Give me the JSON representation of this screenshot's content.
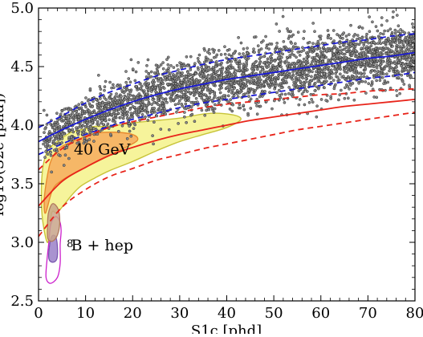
{
  "chart_data": {
    "type": "scatter",
    "xlabel": "S1c [phd]",
    "ylabel": "log10(S2c [phd])",
    "xlim": [
      0,
      80
    ],
    "ylim": [
      2.5,
      5.0
    ],
    "xticks": [
      0,
      10,
      20,
      30,
      40,
      50,
      60,
      70,
      80
    ],
    "xtick_labels": [
      "0",
      "10",
      "20",
      "30",
      "40",
      "50",
      "60",
      "70",
      "80"
    ],
    "yticks": [
      2.5,
      3.0,
      3.5,
      4.0,
      4.5,
      5.0
    ],
    "ytick_labels": [
      "2.5",
      "3.0",
      "3.5",
      "4.0",
      "4.5",
      "5.0"
    ],
    "annotations": [
      {
        "text": "40 GeV",
        "x": 7.5,
        "y": 3.75
      },
      {
        "text": "8",
        "sup": true,
        "x": 6.0,
        "y": 2.96
      },
      {
        "text": "B + hep",
        "x": 6.9,
        "y": 2.93
      }
    ],
    "background_band": {
      "x": [
        0,
        5,
        10,
        15,
        20,
        25,
        30,
        35,
        40,
        45,
        50,
        55,
        60,
        65,
        70,
        75,
        80
      ],
      "mean": [
        3.86,
        3.96,
        4.05,
        4.13,
        4.2,
        4.26,
        4.31,
        4.35,
        4.39,
        4.42,
        4.45,
        4.48,
        4.51,
        4.54,
        4.57,
        4.59,
        4.62
      ],
      "upper": [
        3.98,
        4.08,
        4.19,
        4.28,
        4.35,
        4.42,
        4.47,
        4.52,
        4.56,
        4.59,
        4.62,
        4.65,
        4.68,
        4.71,
        4.73,
        4.76,
        4.78
      ],
      "lower": [
        3.75,
        3.84,
        3.92,
        3.99,
        4.05,
        4.1,
        4.15,
        4.19,
        4.22,
        4.25,
        4.28,
        4.31,
        4.34,
        4.37,
        4.4,
        4.42,
        4.45
      ]
    },
    "nr_band": {
      "x": [
        0,
        5,
        10,
        15,
        20,
        25,
        30,
        35,
        40,
        45,
        50,
        55,
        60,
        65,
        70,
        75,
        80
      ],
      "mean": [
        3.31,
        3.52,
        3.64,
        3.74,
        3.81,
        3.87,
        3.92,
        3.96,
        4.0,
        4.04,
        4.07,
        4.1,
        4.13,
        4.16,
        4.18,
        4.2,
        4.22
      ],
      "upper": [
        3.62,
        3.8,
        3.9,
        3.98,
        4.03,
        4.07,
        4.11,
        4.15,
        4.18,
        4.2,
        4.22,
        4.24,
        4.26,
        4.27,
        4.29,
        4.3,
        4.31
      ],
      "lower": [
        3.05,
        3.3,
        3.45,
        3.56,
        3.63,
        3.7,
        3.75,
        3.8,
        3.84,
        3.88,
        3.92,
        3.96,
        3.99,
        4.02,
        4.05,
        4.08,
        4.11
      ]
    },
    "wimp_40gev_contours": [
      {
        "level": "outer",
        "fill": "#f4f28a",
        "stroke": "#c8c43a",
        "points": [
          [
            2.0,
            3.0
          ],
          [
            2.8,
            3.25
          ],
          [
            3.8,
            3.25
          ],
          [
            5,
            3.3
          ],
          [
            7,
            3.4
          ],
          [
            9,
            3.48
          ],
          [
            12,
            3.55
          ],
          [
            15,
            3.61
          ],
          [
            20,
            3.69
          ],
          [
            25,
            3.78
          ],
          [
            30,
            3.86
          ],
          [
            35,
            3.92
          ],
          [
            40,
            3.98
          ],
          [
            43,
            4.05
          ],
          [
            41,
            4.09
          ],
          [
            36,
            4.1
          ],
          [
            30,
            4.06
          ],
          [
            25,
            4.04
          ],
          [
            20,
            4.02
          ],
          [
            15,
            3.99
          ],
          [
            12,
            3.99
          ],
          [
            10,
            3.97
          ],
          [
            7,
            3.94
          ],
          [
            5,
            3.89
          ],
          [
            3,
            3.83
          ],
          [
            1.6,
            3.75
          ],
          [
            0.8,
            3.6
          ],
          [
            0.6,
            3.35
          ],
          [
            1.0,
            3.15
          ]
        ]
      },
      {
        "level": "inner",
        "fill": "#f6b062",
        "stroke": "#e88a2e",
        "points": [
          [
            1.5,
            3.25
          ],
          [
            3,
            3.45
          ],
          [
            5,
            3.53
          ],
          [
            8,
            3.6
          ],
          [
            11,
            3.66
          ],
          [
            15,
            3.74
          ],
          [
            18,
            3.8
          ],
          [
            21,
            3.87
          ],
          [
            20,
            3.92
          ],
          [
            16,
            3.94
          ],
          [
            12,
            3.93
          ],
          [
            9,
            3.89
          ],
          [
            6,
            3.84
          ],
          [
            4,
            3.79
          ],
          [
            2.5,
            3.68
          ],
          [
            1.6,
            3.5
          ],
          [
            1.2,
            3.35
          ]
        ]
      }
    ],
    "b8_hep_contours": [
      {
        "level": "outer",
        "stroke": "#cc1fcc",
        "points": [
          [
            1.6,
            2.7
          ],
          [
            2.5,
            2.65
          ],
          [
            4.0,
            2.7
          ],
          [
            4.6,
            2.82
          ],
          [
            4.6,
            2.98
          ],
          [
            4.8,
            3.1
          ],
          [
            4.5,
            3.18
          ],
          [
            3.6,
            3.22
          ],
          [
            2.6,
            3.15
          ],
          [
            2.2,
            3.0
          ],
          [
            1.8,
            2.85
          ]
        ]
      },
      {
        "level": "inner",
        "fill": "#9a80c8",
        "stroke": "#7a58b0",
        "points": [
          [
            2.2,
            2.86
          ],
          [
            3.0,
            2.83
          ],
          [
            3.9,
            2.86
          ],
          [
            4.0,
            2.97
          ],
          [
            3.6,
            3.05
          ],
          [
            2.8,
            3.05
          ],
          [
            2.3,
            2.96
          ]
        ]
      },
      {
        "level": "lobe",
        "fill": "#c8a58a",
        "stroke": "#b0785c",
        "points": [
          [
            2.0,
            3.03
          ],
          [
            3.0,
            3.01
          ],
          [
            4.0,
            3.06
          ],
          [
            4.5,
            3.16
          ],
          [
            4.2,
            3.28
          ],
          [
            3.0,
            3.33
          ],
          [
            2.1,
            3.25
          ],
          [
            1.9,
            3.12
          ]
        ]
      }
    ],
    "colors": {
      "background_band": "#1a1ad6",
      "nr_band": "#e8241a",
      "points": "#8a8a8a",
      "point_edge": "#2a2a2a"
    }
  }
}
